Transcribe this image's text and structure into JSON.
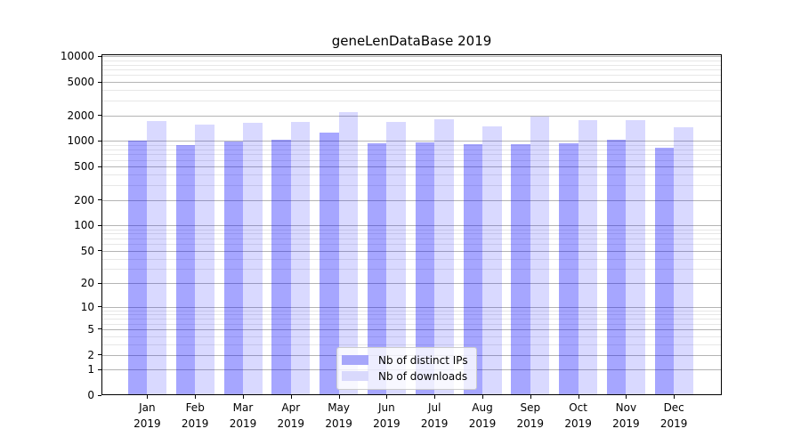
{
  "chart_data": {
    "type": "bar",
    "title": "geneLenDataBase 2019",
    "categories": [
      "Jan",
      "Feb",
      "Mar",
      "Apr",
      "May",
      "Jun",
      "Jul",
      "Aug",
      "Sep",
      "Oct",
      "Nov",
      "Dec"
    ],
    "year_label": "2019",
    "series": [
      {
        "name": "Nb of distinct IPs",
        "color": "rgba(0,0,255,0.35)",
        "legend_swatch": "#a6a6fa",
        "values": [
          1020,
          890,
          990,
          1040,
          1270,
          940,
          970,
          920,
          920,
          940,
          1040,
          830
        ]
      },
      {
        "name": "Nb of downloads",
        "color": "rgba(0,0,255,0.15)",
        "legend_swatch": "#d9d9fc",
        "values": [
          1720,
          1550,
          1630,
          1690,
          2180,
          1680,
          1790,
          1480,
          1950,
          1750,
          1780,
          1450
        ]
      }
    ],
    "xlabel": "",
    "ylabel": "",
    "y_scale": "log1p",
    "y_major_ticks": [
      0,
      1,
      2,
      5,
      10,
      20,
      50,
      100,
      200,
      500,
      1000,
      2000,
      5000,
      10000
    ],
    "ylim": [
      0,
      10600
    ],
    "grid": "both",
    "legend_position": "lower center",
    "colors": {
      "major_grid": "#b4b4b4",
      "minor_grid": "#e7e7e7",
      "spine": "#000000"
    }
  }
}
